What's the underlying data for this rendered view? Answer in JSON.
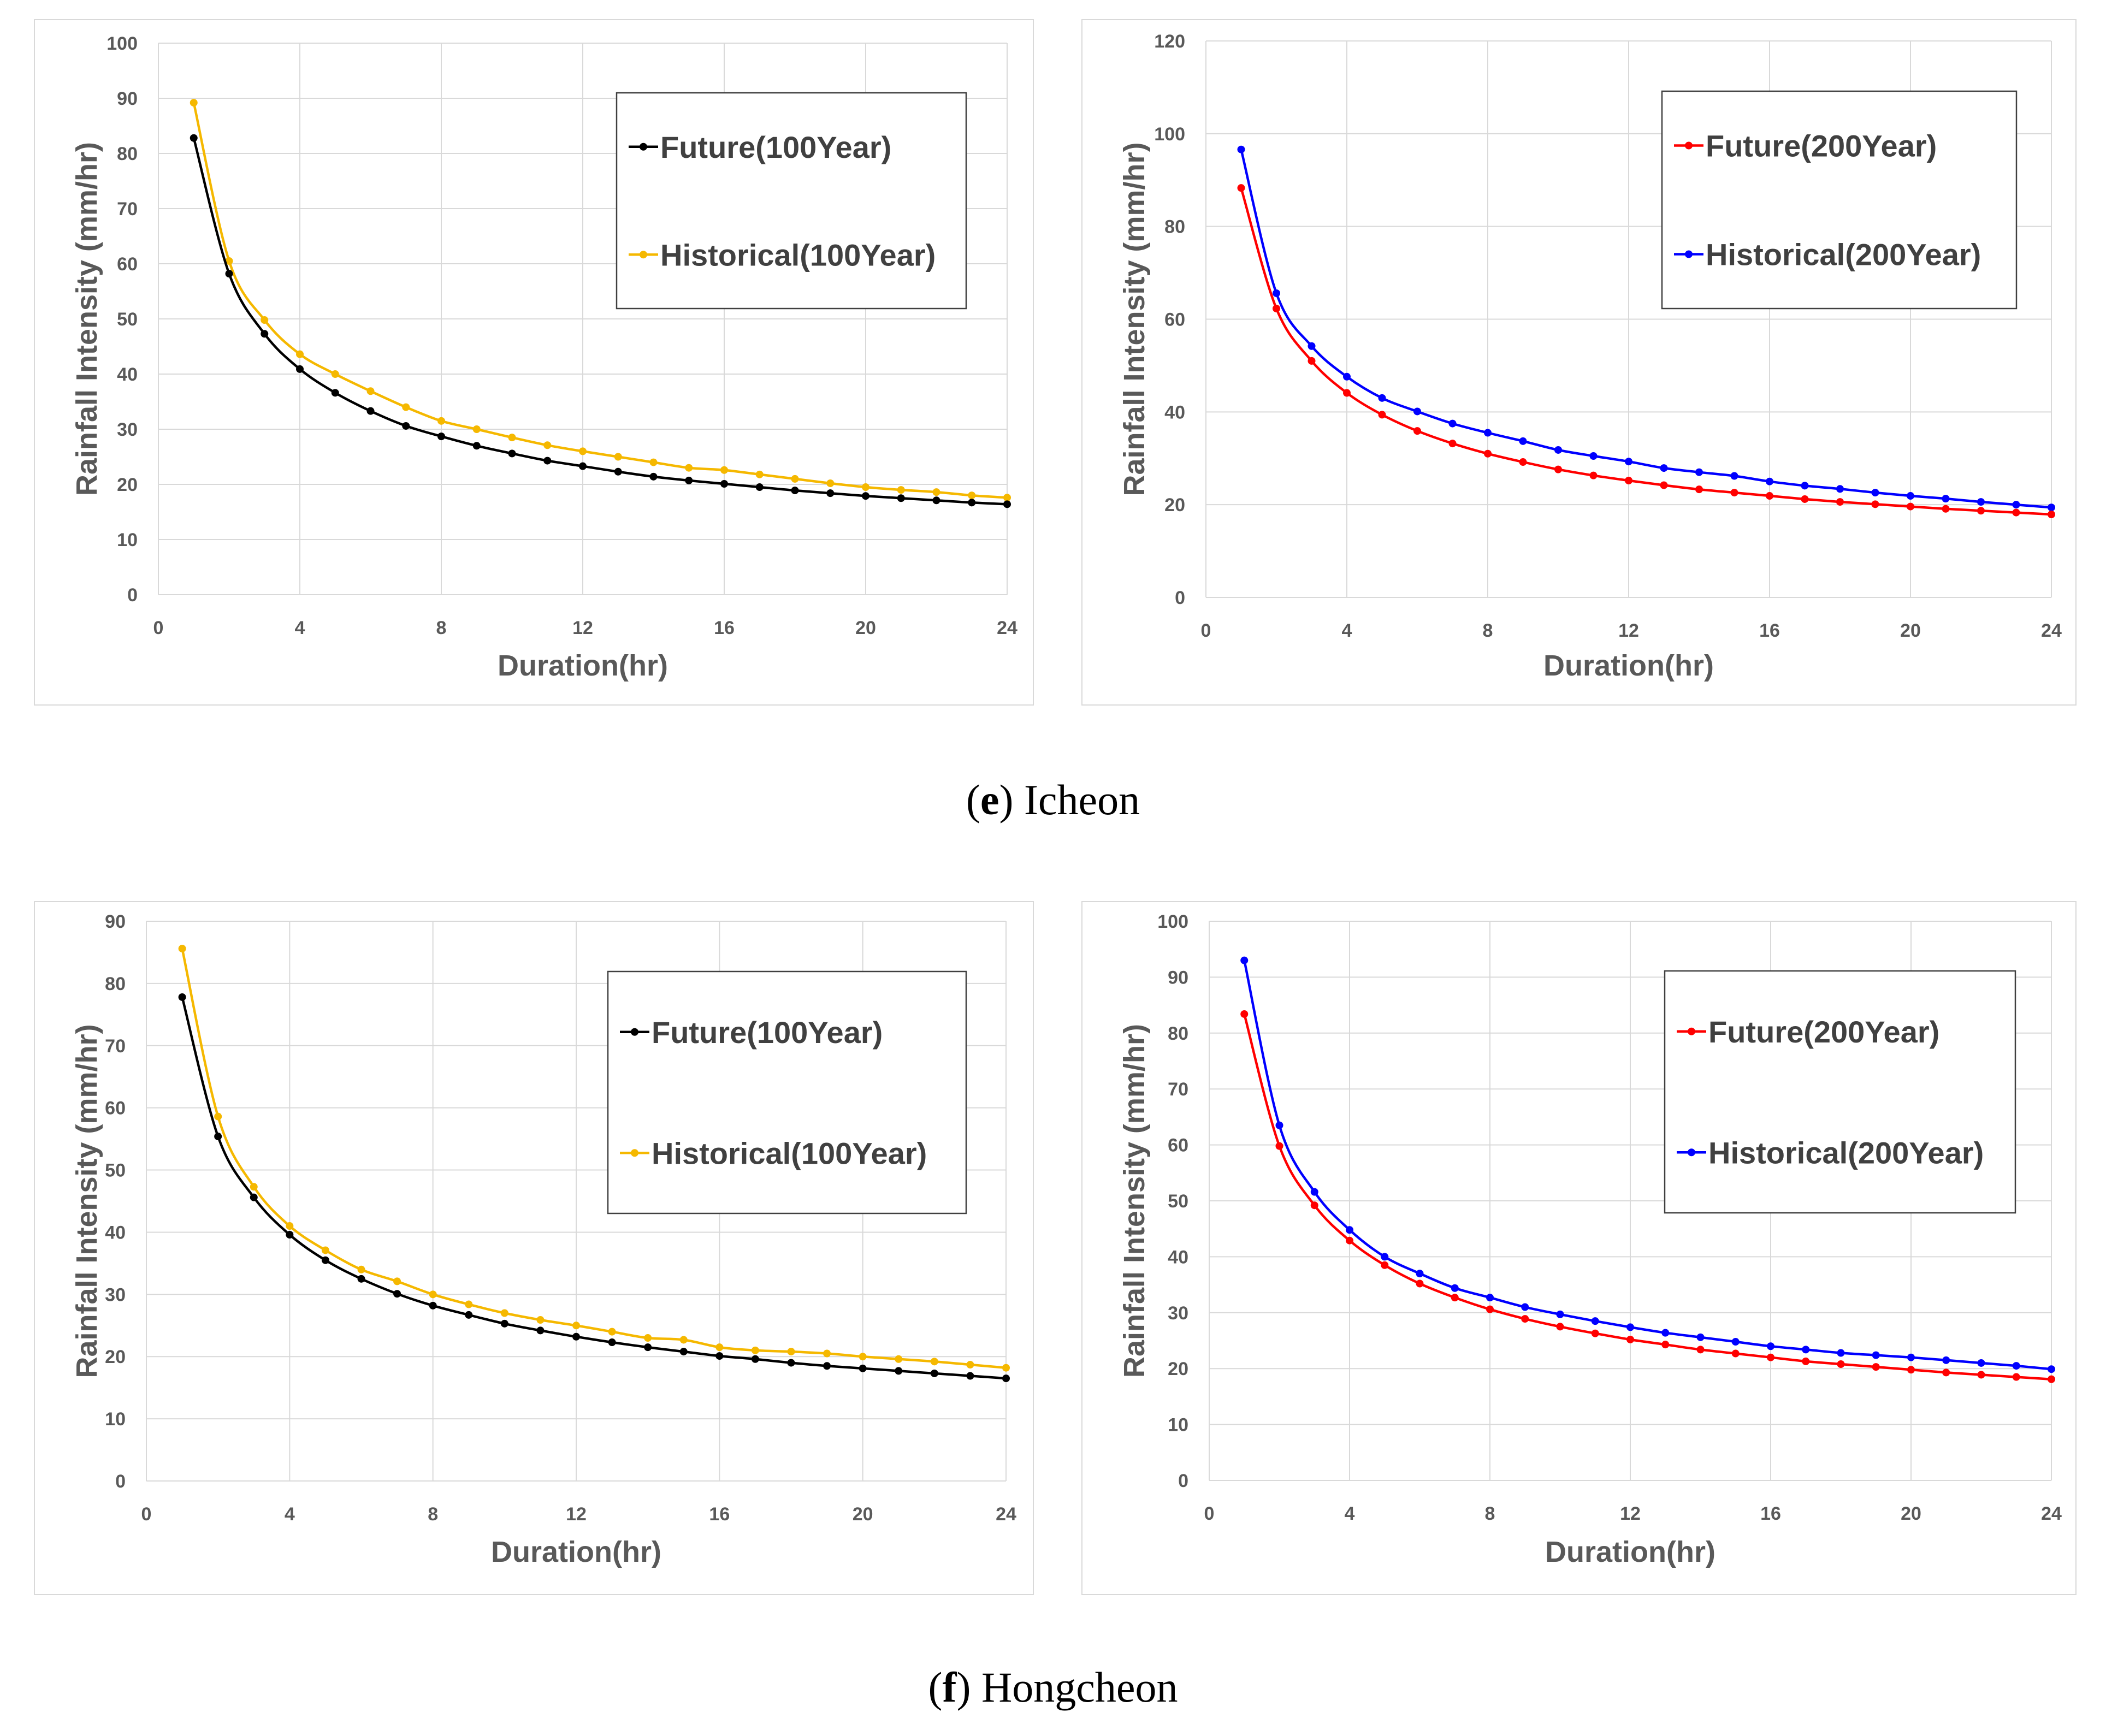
{
  "captions": [
    {
      "letter": "e",
      "name": "Icheon"
    },
    {
      "letter": "f",
      "name": "Hongcheon"
    }
  ],
  "chart_data": [
    {
      "type": "line",
      "panel": "e-left",
      "xlabel": "Duration(hr)",
      "ylabel": "Rainfall Intensity (mm/hr)",
      "xlim": [
        0,
        24
      ],
      "xticks": [
        0,
        4,
        8,
        12,
        16,
        20,
        24
      ],
      "ylim": [
        0,
        100
      ],
      "yticks": [
        0,
        10,
        20,
        30,
        40,
        50,
        60,
        70,
        80,
        90,
        100
      ],
      "grid": true,
      "legend_position": "top-right",
      "x": [
        1,
        2,
        3,
        4,
        5,
        6,
        7,
        8,
        9,
        10,
        11,
        12,
        13,
        14,
        15,
        16,
        17,
        18,
        19,
        20,
        21,
        22,
        23,
        24
      ],
      "series": [
        {
          "name": "Future(100Year)",
          "color": "#000000",
          "values": [
            82.8,
            58.2,
            47.3,
            40.9,
            36.6,
            33.3,
            30.6,
            28.7,
            27.0,
            25.6,
            24.3,
            23.3,
            22.3,
            21.4,
            20.7,
            20.1,
            19.5,
            18.9,
            18.4,
            17.9,
            17.5,
            17.1,
            16.7,
            16.4
          ]
        },
        {
          "name": "Historical(100Year)",
          "color": "#F5B800",
          "values": [
            89.2,
            60.5,
            49.8,
            43.6,
            40.0,
            36.9,
            34.0,
            31.5,
            30.0,
            28.5,
            27.1,
            26.0,
            25.0,
            24.0,
            23.0,
            22.6,
            21.8,
            21.0,
            20.2,
            19.5,
            19.0,
            18.6,
            18.0,
            17.6
          ]
        }
      ]
    },
    {
      "type": "line",
      "panel": "e-right",
      "xlabel": "Duration(hr)",
      "ylabel": "Rainfall Intensity (mm/hr)",
      "xlim": [
        0,
        24
      ],
      "xticks": [
        0,
        4,
        8,
        12,
        16,
        20,
        24
      ],
      "ylim": [
        0,
        120
      ],
      "yticks": [
        0,
        20,
        40,
        60,
        80,
        100,
        120
      ],
      "grid": true,
      "legend_position": "top-right",
      "x": [
        1,
        2,
        3,
        4,
        5,
        6,
        7,
        8,
        9,
        10,
        11,
        12,
        13,
        14,
        15,
        16,
        17,
        18,
        19,
        20,
        21,
        22,
        23,
        24
      ],
      "series": [
        {
          "name": "Future(200Year)",
          "color": "#FF0000",
          "values": [
            88.3,
            62.3,
            51.0,
            44.1,
            39.4,
            35.9,
            33.2,
            31.0,
            29.2,
            27.6,
            26.3,
            25.2,
            24.2,
            23.3,
            22.6,
            21.9,
            21.2,
            20.6,
            20.1,
            19.6,
            19.1,
            18.7,
            18.3,
            17.9
          ]
        },
        {
          "name": "Historical(200Year)",
          "color": "#0000FF",
          "values": [
            96.6,
            65.6,
            54.2,
            47.6,
            43.0,
            40.1,
            37.5,
            35.5,
            33.7,
            31.8,
            30.5,
            29.3,
            27.9,
            27.0,
            26.2,
            25.0,
            24.1,
            23.4,
            22.6,
            21.9,
            21.3,
            20.6,
            20.0,
            19.4
          ]
        }
      ]
    },
    {
      "type": "line",
      "panel": "f-left",
      "xlabel": "Duration(hr)",
      "ylabel": "Rainfall Intensity (mm/hr)",
      "xlim": [
        0,
        24
      ],
      "xticks": [
        0,
        4,
        8,
        12,
        16,
        20,
        24
      ],
      "ylim": [
        0,
        90
      ],
      "yticks": [
        0,
        10,
        20,
        30,
        40,
        50,
        60,
        70,
        80,
        90
      ],
      "grid": true,
      "legend_position": "top-right",
      "x": [
        1,
        2,
        3,
        4,
        5,
        6,
        7,
        8,
        9,
        10,
        11,
        12,
        13,
        14,
        15,
        16,
        17,
        18,
        19,
        20,
        21,
        22,
        23,
        24
      ],
      "series": [
        {
          "name": "Future(100Year)",
          "color": "#000000",
          "values": [
            77.8,
            55.4,
            45.6,
            39.6,
            35.5,
            32.5,
            30.1,
            28.2,
            26.7,
            25.3,
            24.2,
            23.2,
            22.3,
            21.5,
            20.8,
            20.1,
            19.6,
            19.0,
            18.5,
            18.1,
            17.7,
            17.3,
            16.9,
            16.5
          ]
        },
        {
          "name": "Historical(100Year)",
          "color": "#F5B800",
          "values": [
            85.6,
            58.6,
            47.3,
            41.0,
            37.1,
            34.0,
            32.1,
            30.0,
            28.4,
            27.0,
            25.9,
            25.0,
            24.0,
            23.0,
            22.7,
            21.5,
            21.0,
            20.8,
            20.5,
            20.0,
            19.6,
            19.2,
            18.7,
            18.2
          ]
        }
      ]
    },
    {
      "type": "line",
      "panel": "f-right",
      "xlabel": "Duration(hr)",
      "ylabel": "Rainfall Intensity (mm/hr)",
      "xlim": [
        0,
        24
      ],
      "xticks": [
        0,
        4,
        8,
        12,
        16,
        20,
        24
      ],
      "ylim": [
        0,
        100
      ],
      "yticks": [
        0,
        10,
        20,
        30,
        40,
        50,
        60,
        70,
        80,
        90,
        100
      ],
      "grid": true,
      "legend_position": "top-right",
      "x": [
        1,
        2,
        3,
        4,
        5,
        6,
        7,
        8,
        9,
        10,
        11,
        12,
        13,
        14,
        15,
        16,
        17,
        18,
        19,
        20,
        21,
        22,
        23,
        24
      ],
      "series": [
        {
          "name": "Future(200Year)",
          "color": "#FF0000",
          "values": [
            83.4,
            59.8,
            49.2,
            42.9,
            38.5,
            35.2,
            32.7,
            30.6,
            28.9,
            27.5,
            26.3,
            25.2,
            24.3,
            23.4,
            22.7,
            22.0,
            21.3,
            20.8,
            20.3,
            19.8,
            19.3,
            18.9,
            18.5,
            18.1
          ]
        },
        {
          "name": "Historical(200Year)",
          "color": "#0000FF",
          "values": [
            93.0,
            63.5,
            51.6,
            44.8,
            40.0,
            37.0,
            34.4,
            32.7,
            31.0,
            29.7,
            28.5,
            27.4,
            26.4,
            25.6,
            24.8,
            24.0,
            23.4,
            22.8,
            22.4,
            22.0,
            21.5,
            21.0,
            20.5,
            19.9
          ]
        }
      ]
    }
  ]
}
